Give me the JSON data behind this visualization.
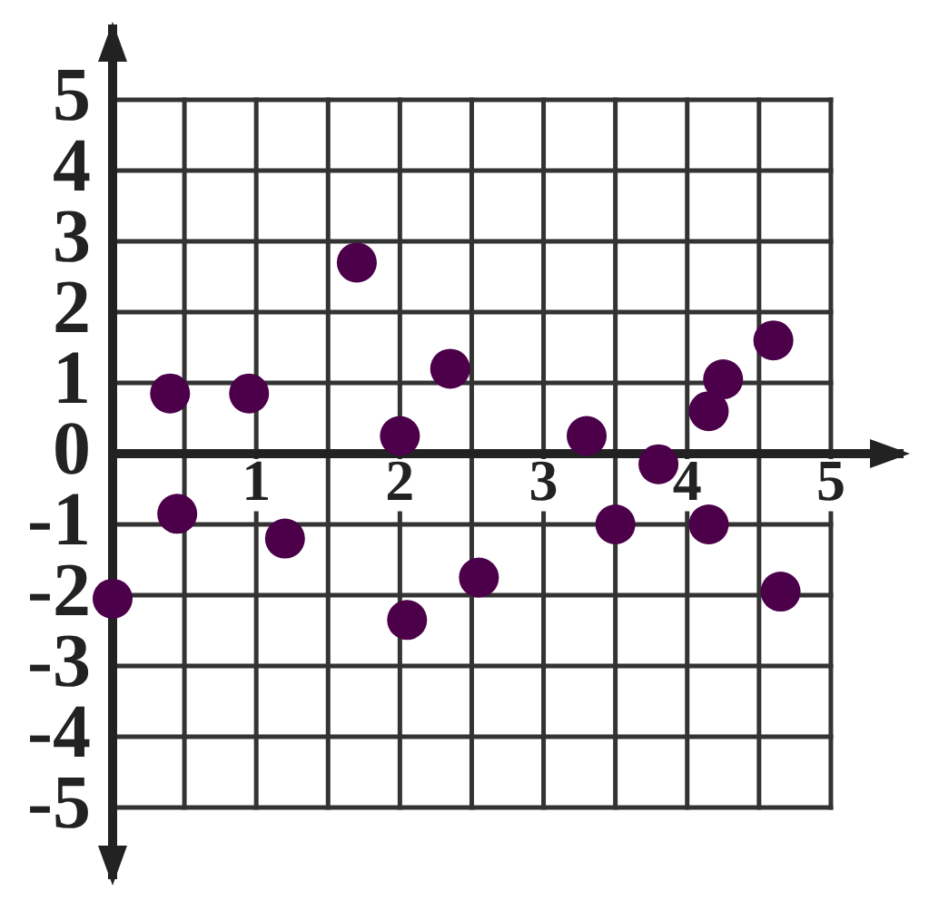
{
  "chart_data": {
    "type": "scatter",
    "x": [
      0,
      0.4,
      0.45,
      0.95,
      1.2,
      1.7,
      2.0,
      2.05,
      2.35,
      2.55,
      3.3,
      3.5,
      3.8,
      4.15,
      4.25,
      4.15,
      4.6,
      4.65
    ],
    "values": [
      -2.05,
      0.85,
      -0.85,
      0.85,
      -1.2,
      2.7,
      0.25,
      -2.35,
      1.2,
      -1.75,
      0.25,
      -1.0,
      -0.15,
      0.6,
      1.05,
      -1.0,
      1.6,
      -1.95
    ],
    "color": "#4b0049",
    "marker": "circle",
    "xlim": [
      0,
      5.5
    ],
    "ylim": [
      -6,
      6
    ],
    "xticks": [
      {
        "value": 0,
        "label": null
      },
      {
        "value": 0.5,
        "label": null
      },
      1,
      {
        "value": 1.5,
        "label": null
      },
      2,
      {
        "value": 2.5,
        "label": null
      },
      3,
      {
        "value": 3.5,
        "label": null
      },
      4,
      {
        "value": 4.5,
        "label": null
      },
      5
    ],
    "yticks": [
      -5,
      -4,
      -3,
      -2,
      -1,
      0,
      1,
      2,
      3,
      4,
      5
    ],
    "grid": true
  }
}
